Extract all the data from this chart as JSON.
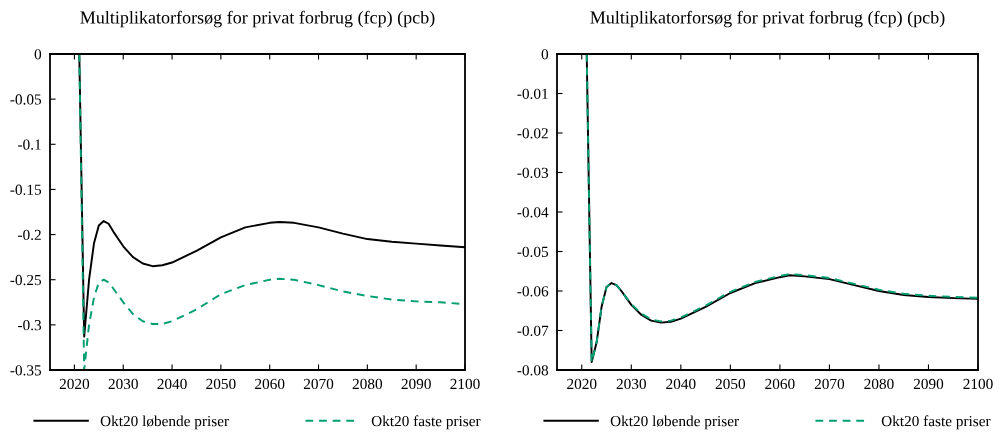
{
  "chart_data": [
    {
      "type": "line",
      "title": "Multiplikatorforsøg for privat forbrug (fcp) (pcb)",
      "x": [
        2021,
        2022,
        2023,
        2024,
        2025,
        2026,
        2027,
        2028,
        2030,
        2032,
        2034,
        2036,
        2038,
        2040,
        2045,
        2050,
        2055,
        2060,
        2062,
        2065,
        2070,
        2075,
        2080,
        2085,
        2090,
        2095,
        2100
      ],
      "series": [
        {
          "name": "Okt20 løbende priser",
          "color": "#000000",
          "line_style": "solid",
          "values": [
            0,
            -0.313,
            -0.25,
            -0.21,
            -0.19,
            -0.185,
            -0.188,
            -0.197,
            -0.213,
            -0.225,
            -0.232,
            -0.235,
            -0.234,
            -0.231,
            -0.218,
            -0.203,
            -0.192,
            -0.187,
            -0.186,
            -0.187,
            -0.192,
            -0.199,
            -0.205,
            -0.208,
            -0.21,
            -0.212,
            -0.214
          ]
        },
        {
          "name": "Okt20 faste priser",
          "color": "#009e73",
          "line_style": "dashed",
          "values": [
            0,
            -0.35,
            -0.3,
            -0.27,
            -0.253,
            -0.25,
            -0.253,
            -0.26,
            -0.275,
            -0.288,
            -0.296,
            -0.299,
            -0.299,
            -0.296,
            -0.283,
            -0.266,
            -0.256,
            -0.25,
            -0.249,
            -0.25,
            -0.256,
            -0.263,
            -0.268,
            -0.272,
            -0.274,
            -0.275,
            -0.277
          ]
        }
      ],
      "xlim": [
        2015,
        2100
      ],
      "xticks": [
        2020,
        2030,
        2040,
        2050,
        2060,
        2070,
        2080,
        2090,
        2100
      ],
      "ylim": [
        -0.35,
        0
      ],
      "yticks": [
        -0.35,
        -0.3,
        -0.25,
        -0.2,
        -0.15,
        -0.1,
        -0.05,
        0
      ],
      "grid": false,
      "legend": "bottom",
      "marker": "none"
    },
    {
      "type": "line",
      "title": "Multiplikatorforsøg for privat forbrug (fcp) (pcb)",
      "x": [
        2021,
        2022,
        2023,
        2024,
        2025,
        2026,
        2027,
        2028,
        2030,
        2032,
        2034,
        2036,
        2038,
        2040,
        2045,
        2050,
        2055,
        2060,
        2062,
        2065,
        2070,
        2075,
        2080,
        2085,
        2090,
        2095,
        2100
      ],
      "series": [
        {
          "name": "Okt20 løbende priser",
          "color": "#000000",
          "line_style": "solid",
          "values": [
            0,
            -0.078,
            -0.073,
            -0.064,
            -0.059,
            -0.058,
            -0.0585,
            -0.06,
            -0.0635,
            -0.066,
            -0.0675,
            -0.068,
            -0.0678,
            -0.067,
            -0.064,
            -0.0605,
            -0.058,
            -0.0565,
            -0.056,
            -0.0563,
            -0.057,
            -0.0585,
            -0.06,
            -0.061,
            -0.0615,
            -0.0618,
            -0.062
          ]
        },
        {
          "name": "Okt20 faste priser",
          "color": "#009e73",
          "line_style": "dashed",
          "values": [
            0,
            -0.078,
            -0.073,
            -0.064,
            -0.059,
            -0.058,
            -0.0585,
            -0.06,
            -0.0633,
            -0.0657,
            -0.0672,
            -0.0677,
            -0.0675,
            -0.0667,
            -0.0637,
            -0.0602,
            -0.0577,
            -0.0562,
            -0.0557,
            -0.056,
            -0.0567,
            -0.0582,
            -0.0597,
            -0.0607,
            -0.0612,
            -0.0615,
            -0.0617
          ]
        }
      ],
      "xlim": [
        2015,
        2100
      ],
      "xticks": [
        2020,
        2030,
        2040,
        2050,
        2060,
        2070,
        2080,
        2090,
        2100
      ],
      "ylim": [
        -0.08,
        0
      ],
      "yticks": [
        -0.08,
        -0.07,
        -0.06,
        -0.05,
        -0.04,
        -0.03,
        -0.02,
        -0.01,
        0
      ],
      "grid": false,
      "legend": "bottom",
      "marker": "none"
    }
  ]
}
